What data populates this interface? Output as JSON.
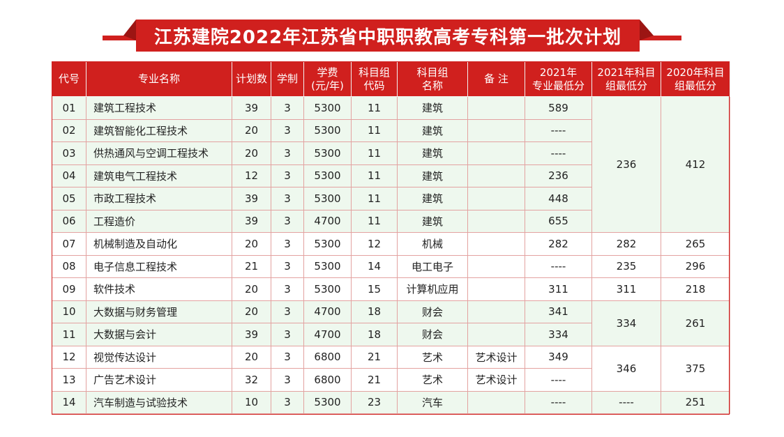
{
  "banner": {
    "title": "江苏建院2022年江苏省中职职教高考专科第一批次计划",
    "color": "#d0201e"
  },
  "table": {
    "headers": [
      "代号",
      "专业名称",
      "计划数",
      "学制",
      "学费\n(元/年)",
      "科目组\n代码",
      "科目组\n名称",
      "备 注",
      "2021年\n专业最低分",
      "2021年科目\n组最低分",
      "2020年科目\n组最低分"
    ],
    "rows": [
      {
        "code": "01",
        "name": "建筑工程技术",
        "plan": "39",
        "years": "3",
        "fee": "5300",
        "group_code": "11",
        "group_name": "建筑",
        "note": "",
        "min2021": "589"
      },
      {
        "code": "02",
        "name": "建筑智能化工程技术",
        "plan": "20",
        "years": "3",
        "fee": "5300",
        "group_code": "11",
        "group_name": "建筑",
        "note": "",
        "min2021": "----"
      },
      {
        "code": "03",
        "name": "供热通风与空调工程技术",
        "plan": "20",
        "years": "3",
        "fee": "5300",
        "group_code": "11",
        "group_name": "建筑",
        "note": "",
        "min2021": "----"
      },
      {
        "code": "04",
        "name": "建筑电气工程技术",
        "plan": "12",
        "years": "3",
        "fee": "5300",
        "group_code": "11",
        "group_name": "建筑",
        "note": "",
        "min2021": "236"
      },
      {
        "code": "05",
        "name": "市政工程技术",
        "plan": "39",
        "years": "3",
        "fee": "5300",
        "group_code": "11",
        "group_name": "建筑",
        "note": "",
        "min2021": "448"
      },
      {
        "code": "06",
        "name": "工程造价",
        "plan": "39",
        "years": "3",
        "fee": "4700",
        "group_code": "11",
        "group_name": "建筑",
        "note": "",
        "min2021": "655"
      },
      {
        "code": "07",
        "name": "机械制造及自动化",
        "plan": "20",
        "years": "3",
        "fee": "5300",
        "group_code": "12",
        "group_name": "机械",
        "note": "",
        "min2021": "282"
      },
      {
        "code": "08",
        "name": "电子信息工程技术",
        "plan": "21",
        "years": "3",
        "fee": "5300",
        "group_code": "14",
        "group_name": "电工电子",
        "note": "",
        "min2021": "----"
      },
      {
        "code": "09",
        "name": "软件技术",
        "plan": "20",
        "years": "3",
        "fee": "5300",
        "group_code": "15",
        "group_name": "计算机应用",
        "note": "",
        "min2021": "311"
      },
      {
        "code": "10",
        "name": "大数据与财务管理",
        "plan": "20",
        "years": "3",
        "fee": "4700",
        "group_code": "18",
        "group_name": "财会",
        "note": "",
        "min2021": "341"
      },
      {
        "code": "11",
        "name": "大数据与会计",
        "plan": "39",
        "years": "3",
        "fee": "4700",
        "group_code": "18",
        "group_name": "财会",
        "note": "",
        "min2021": "334"
      },
      {
        "code": "12",
        "name": "视觉传达设计",
        "plan": "20",
        "years": "3",
        "fee": "6800",
        "group_code": "21",
        "group_name": "艺术",
        "note": "艺术设计",
        "min2021": "349"
      },
      {
        "code": "13",
        "name": "广告艺术设计",
        "plan": "32",
        "years": "3",
        "fee": "6800",
        "group_code": "21",
        "group_name": "艺术",
        "note": "艺术设计",
        "min2021": "----"
      },
      {
        "code": "14",
        "name": "汽车制造与试验技术",
        "plan": "10",
        "years": "3",
        "fee": "5300",
        "group_code": "23",
        "group_name": "汽车",
        "note": "",
        "min2021": "----"
      }
    ],
    "group_min": [
      {
        "g2021": "236",
        "g2020": "412"
      },
      {
        "g2021": "282",
        "g2020": "265"
      },
      {
        "g2021": "235",
        "g2020": "296"
      },
      {
        "g2021": "311",
        "g2020": "218"
      },
      {
        "g2021": "334",
        "g2020": "261"
      },
      {
        "g2021": "346",
        "g2020": "375"
      },
      {
        "g2021": "----",
        "g2020": "251"
      }
    ]
  }
}
